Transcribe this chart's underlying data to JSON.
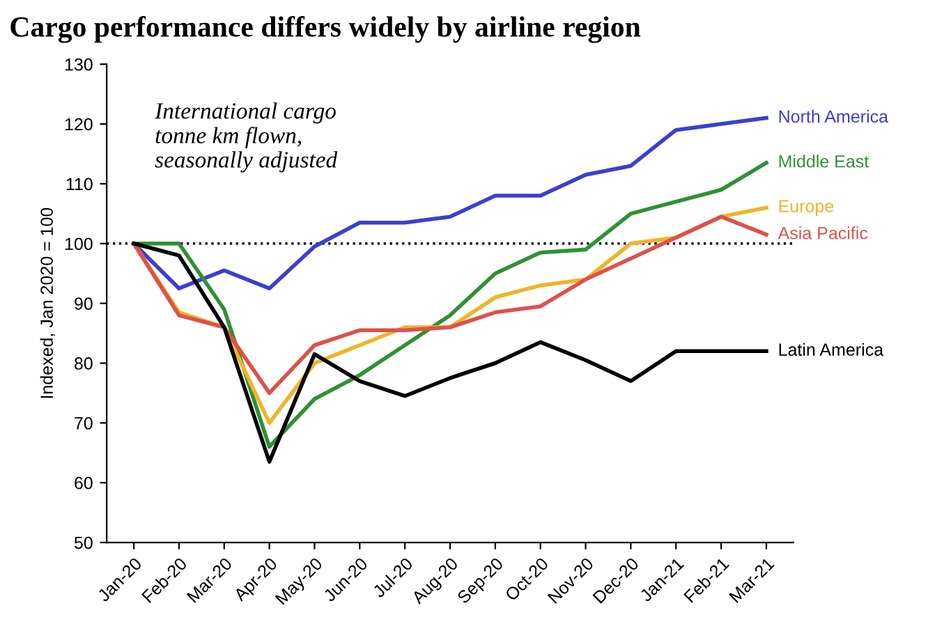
{
  "chart_data": {
    "type": "line",
    "title": "Cargo performance differs widely by airline region",
    "ylabel": "Indexed, Jan 2020 = 100",
    "annotations": [
      "International cargo\ntonne km flown,\nseasonally adjusted"
    ],
    "categories": [
      "Jan-20",
      "Feb-20",
      "Mar-20",
      "Apr-20",
      "May-20",
      "Jun-20",
      "Jul-20",
      "Aug-20",
      "Sep-20",
      "Oct-20",
      "Nov-20",
      "Dec-20",
      "Jan-21",
      "Feb-21",
      "Mar-21"
    ],
    "series": [
      {
        "name": "North America",
        "color": "#3a3fd0",
        "values": [
          100,
          92.5,
          95.5,
          92.5,
          99.5,
          103.5,
          103.5,
          104.5,
          108,
          108,
          111.5,
          113,
          119,
          120,
          121
        ]
      },
      {
        "name": "Middle East",
        "color": "#2e9134",
        "values": [
          100,
          100,
          89,
          66,
          74,
          78,
          83,
          88,
          95,
          98.5,
          99,
          105,
          107,
          109,
          113.5
        ]
      },
      {
        "name": "Europe",
        "color": "#f0b429",
        "values": [
          100,
          88.5,
          86,
          70,
          80,
          83,
          86,
          86,
          91,
          93,
          94,
          100,
          101,
          104.5,
          106
        ]
      },
      {
        "name": "Asia Pacific",
        "color": "#e0504a",
        "values": [
          100,
          88,
          86,
          75,
          83,
          85.5,
          85.5,
          86,
          88.5,
          89.5,
          94,
          97.5,
          101,
          104.5,
          101.5
        ]
      },
      {
        "name": "Latin America",
        "color": "#000000",
        "values": [
          100,
          98,
          86,
          63.5,
          81.5,
          77,
          74.5,
          77.5,
          80,
          83.5,
          80.5,
          77,
          82,
          82,
          82
        ]
      }
    ],
    "ylim": [
      50,
      130
    ],
    "yticks": [
      50,
      60,
      70,
      80,
      90,
      100,
      110,
      120,
      130
    ],
    "ref_lines": [
      {
        "axis": "y",
        "value": 100,
        "color": "#000000",
        "line_style": "dotted"
      }
    ],
    "grid": false,
    "legend": false,
    "marker": "none",
    "line_style": "solid"
  }
}
